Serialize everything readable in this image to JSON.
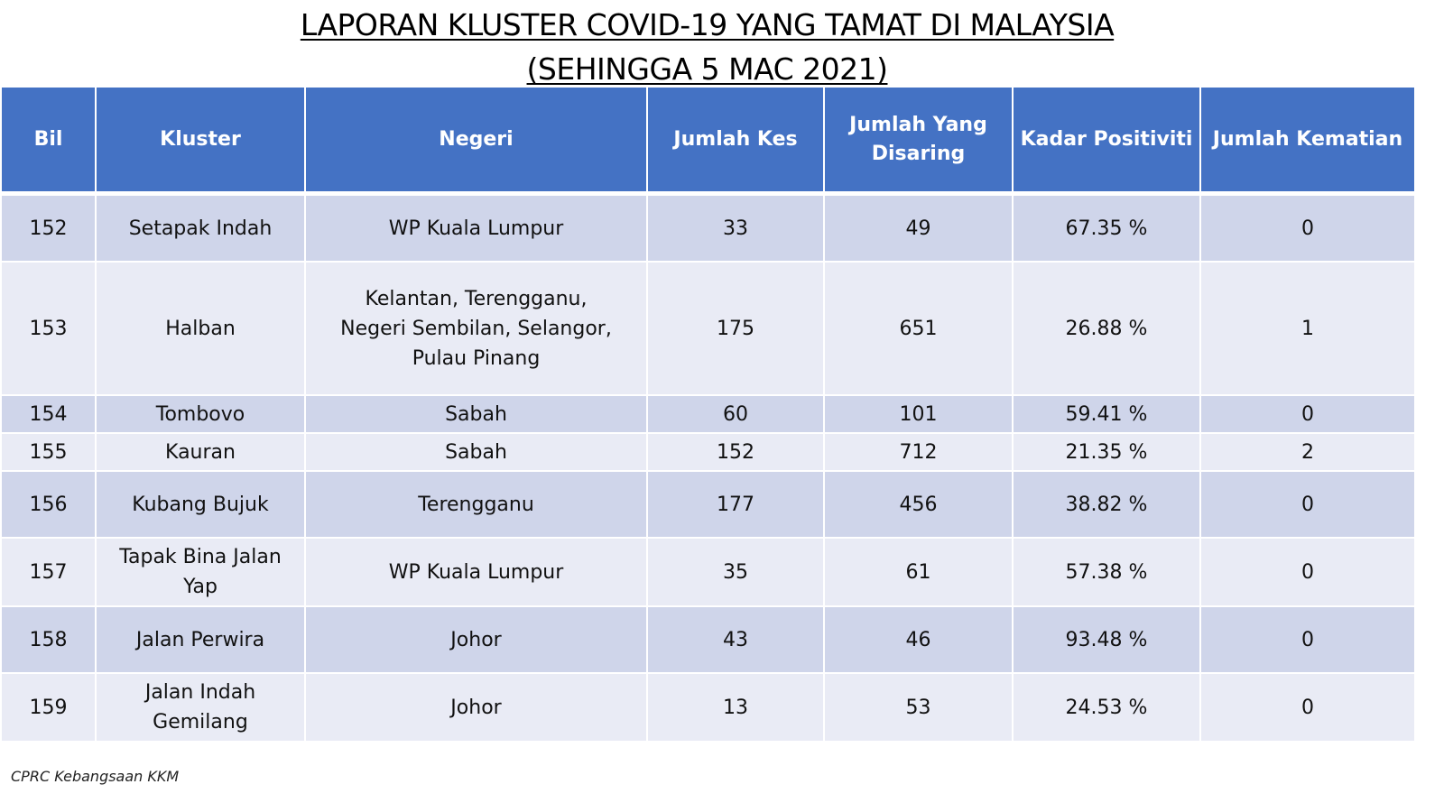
{
  "title": {
    "line1": "LAPORAN KLUSTER COVID-19 YANG TAMAT DI MALAYSIA",
    "line2": "(SEHINGGA  5 MAC 2021)"
  },
  "table": {
    "headers": [
      "Bil",
      "Kluster",
      "Negeri",
      "Jumlah Kes",
      "Jumlah Yang Disaring",
      "Kadar Positiviti",
      "Jumlah Kematian"
    ],
    "rows": [
      [
        "152",
        "Setapak Indah",
        "WP Kuala Lumpur",
        "33",
        "49",
        "67.35 %",
        "0"
      ],
      [
        "153",
        "Halban",
        "Kelantan, Terengganu, Negeri Sembilan, Selangor, Pulau Pinang",
        "175",
        "651",
        "26.88 %",
        "1"
      ],
      [
        "154",
        "Tombovo",
        "Sabah",
        "60",
        "101",
        "59.41 %",
        "0"
      ],
      [
        "155",
        "Kauran",
        "Sabah",
        "152",
        "712",
        "21.35 %",
        "2"
      ],
      [
        "156",
        "Kubang Bujuk",
        "Terengganu",
        "177",
        "456",
        "38.82 %",
        "0"
      ],
      [
        "157",
        "Tapak Bina Jalan Yap",
        "WP Kuala Lumpur",
        "35",
        "61",
        "57.38 %",
        "0"
      ],
      [
        "158",
        "Jalan Perwira",
        "Johor",
        "43",
        "46",
        "93.48 %",
        "0"
      ],
      [
        "159",
        "Jalan Indah Gemilang",
        "Johor",
        "13",
        "53",
        "24.53 %",
        "0"
      ]
    ]
  },
  "source": "CPRC Kebangsaan KKM",
  "colors": {
    "header_bg": "#4472c4",
    "row_odd": "#cfd5ea",
    "row_even": "#e9ebf5"
  }
}
